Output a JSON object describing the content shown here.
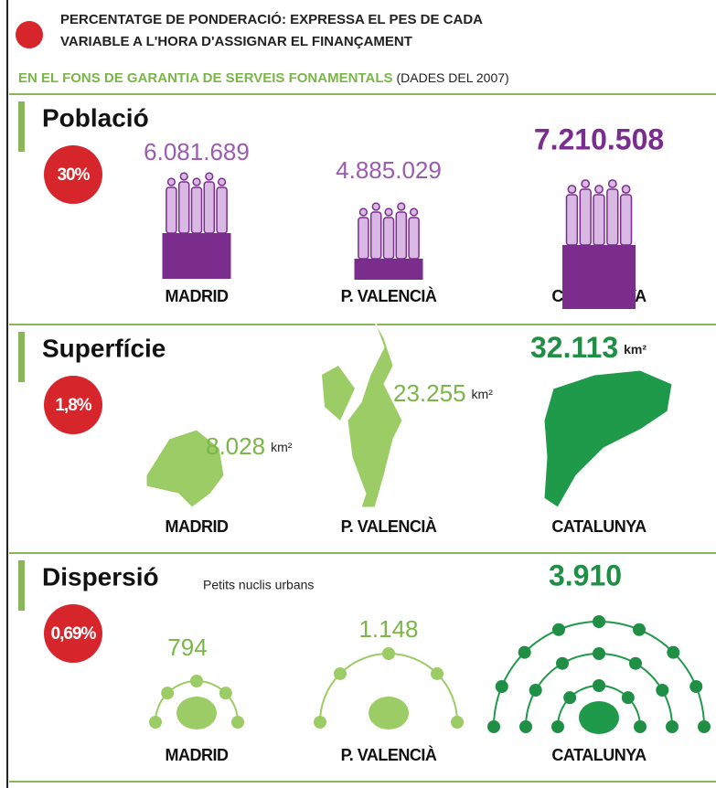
{
  "header": {
    "lines": [
      "PERCENTATGE DE PONDERACIÓ: EXPRESSA EL PES DE CADA",
      "VARIABLE A L'HORA D'ASSIGNAR EL FINANÇAMENT"
    ]
  },
  "subtitle": {
    "main": "EN EL FONS DE GARANTIA DE SERVEIS FONAMENTALS",
    "note": "(DADES DEL 2007)"
  },
  "sections": [
    {
      "title": "Població",
      "weight": "30%",
      "regions": [
        {
          "name": "MADRID",
          "value": "6.081.689"
        },
        {
          "name": "P. VALENCIÀ",
          "value": "4.885.029"
        },
        {
          "name": "CATALUNYA",
          "value": "7.210.508"
        }
      ]
    },
    {
      "title": "Superfície",
      "weight": "1,8%",
      "regions": [
        {
          "name": "MADRID",
          "value": "8.028",
          "unit": "km²"
        },
        {
          "name": "P. VALENCIÀ",
          "value": "23.255",
          "unit": "km²"
        },
        {
          "name": "CATALUNYA",
          "value": "32.113",
          "unit": "km²"
        }
      ]
    },
    {
      "title": "Dispersió",
      "note": "Petits nuclis urbans",
      "weight": "0,69%",
      "regions": [
        {
          "name": "MADRID",
          "value": "794"
        },
        {
          "name": "P. VALENCIÀ",
          "value": "1.148"
        },
        {
          "name": "CATALUNYA",
          "value": "3.910"
        }
      ]
    }
  ]
}
